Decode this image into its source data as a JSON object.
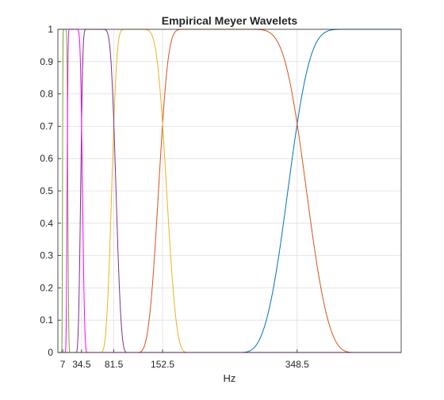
{
  "chart_data": {
    "type": "line",
    "title": "Empirical Meyer Wavelets",
    "xlabel": "Hz",
    "ylabel": "",
    "xlim": [
      0,
      500
    ],
    "ylim": [
      0,
      1
    ],
    "grid": true,
    "xticks": [
      7,
      34.5,
      81.5,
      152.5,
      348.5
    ],
    "xtick_labels": [
      "7",
      "34.5",
      "81.5",
      "152.5",
      "348.5"
    ],
    "yticks": [
      0,
      0.1,
      0.2,
      0.3,
      0.4,
      0.5,
      0.6,
      0.7,
      0.8,
      0.9,
      1
    ],
    "ytick_labels": [
      "0",
      "0.1",
      "0.2",
      "0.3",
      "0.4",
      "0.5",
      "0.6",
      "0.7",
      "0.8",
      "0.9",
      "1"
    ],
    "transition_width_ratio": 0.25,
    "boundaries": [
      7,
      14,
      34.5,
      81.5,
      152.5,
      348.5
    ],
    "series": [
      {
        "color": "#0072BD",
        "band": [
          348.5,
          500
        ]
      },
      {
        "color": "#D95319",
        "band": [
          152.5,
          348.5
        ]
      },
      {
        "color": "#EDB120",
        "band": [
          81.5,
          152.5
        ]
      },
      {
        "color": "#7E2F8E",
        "band": [
          34.5,
          81.5
        ]
      },
      {
        "color": "#77AC30",
        "band": [
          7,
          14
        ]
      },
      {
        "color": "#FF00FF",
        "band": [
          14,
          34.5
        ]
      }
    ]
  }
}
